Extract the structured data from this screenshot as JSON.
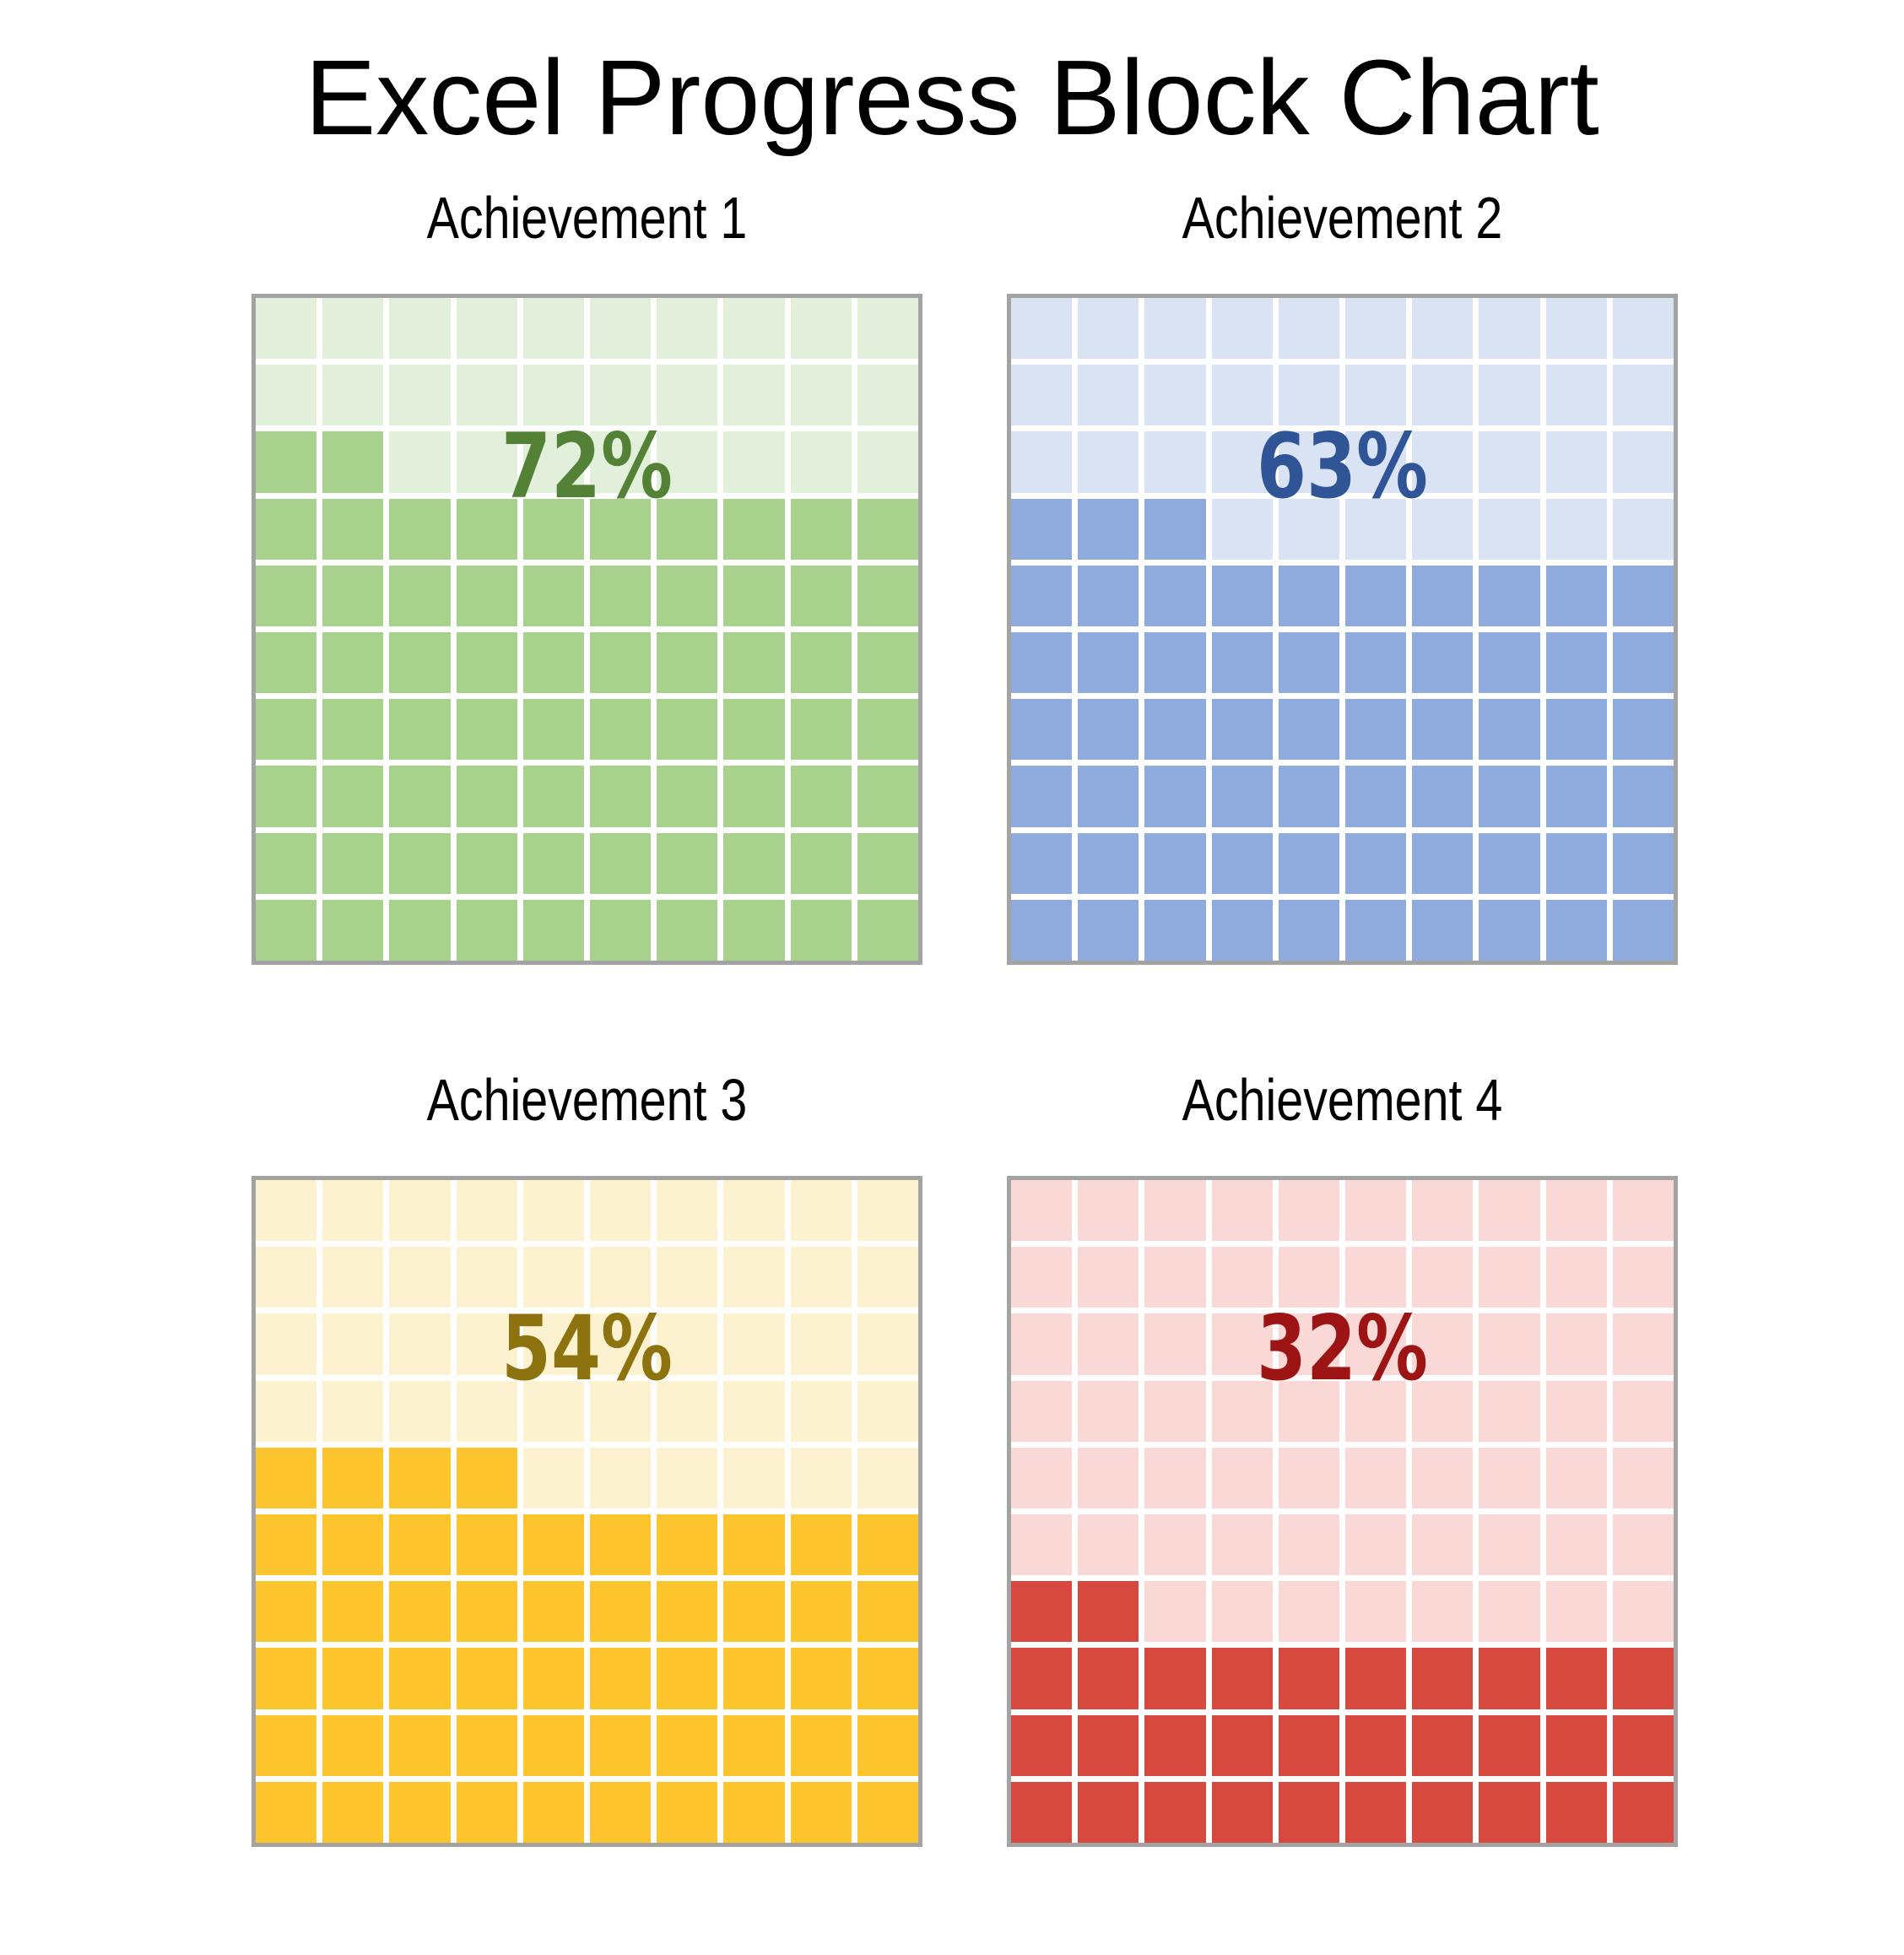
{
  "title": "Excel Progress Block Chart",
  "layout": {
    "grid_border_color": "#a3a3a3",
    "gap_color": "#ffffff",
    "background_color": "#ffffff",
    "title_color": "#000000",
    "label_color": "#000000"
  },
  "chart_data": [
    {
      "type": "waffle",
      "label": "Achievement 1",
      "value_percent": 72,
      "percent_label": "72%",
      "grid": {
        "rows": 10,
        "cols": 10,
        "fill_origin": "bottom-left"
      },
      "colors": {
        "filled": "#a9d18e",
        "empty": "#e2efda",
        "text": "#538135"
      }
    },
    {
      "type": "waffle",
      "label": "Achievement 2",
      "value_percent": 63,
      "percent_label": "63%",
      "grid": {
        "rows": 10,
        "cols": 10,
        "fill_origin": "bottom-left"
      },
      "colors": {
        "filled": "#8faadc",
        "empty": "#dae3f3",
        "text": "#2f5597"
      }
    },
    {
      "type": "waffle",
      "label": "Achievement 3",
      "value_percent": 54,
      "percent_label": "54%",
      "grid": {
        "rows": 10,
        "cols": 10,
        "fill_origin": "bottom-left"
      },
      "colors": {
        "filled": "#fcc52d",
        "empty": "#fdf2d0",
        "text": "#8c730f"
      }
    },
    {
      "type": "waffle",
      "label": "Achievement 4",
      "value_percent": 32,
      "percent_label": "32%",
      "grid": {
        "rows": 10,
        "cols": 10,
        "fill_origin": "bottom-left"
      },
      "colors": {
        "filled": "#d7493f",
        "empty": "#f9d8d6",
        "text": "#9c1414"
      }
    }
  ]
}
